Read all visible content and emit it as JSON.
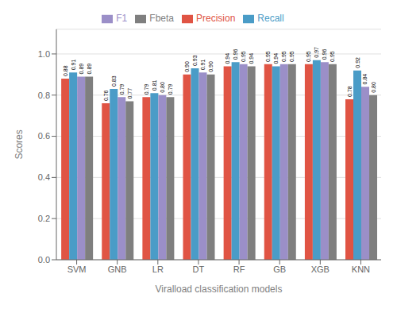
{
  "chart_data": {
    "type": "bar",
    "categories": [
      "SVM",
      "GNB",
      "LR",
      "DT",
      "RF",
      "GB",
      "XGB",
      "KNN"
    ],
    "series": [
      {
        "name": "Precision",
        "color": "#e05444",
        "values": [
          0.88,
          0.76,
          0.79,
          0.9,
          0.94,
          0.95,
          0.95,
          0.78
        ],
        "value_labels": [
          "0.88",
          "0.76",
          "0.79",
          "0.90",
          "0.94",
          "0.95",
          "0.95",
          "0.78"
        ]
      },
      {
        "name": "Recall",
        "color": "#4a9cc7",
        "values": [
          0.91,
          0.83,
          0.81,
          0.93,
          0.96,
          0.94,
          0.97,
          0.92
        ],
        "value_labels": [
          "0.91",
          "0.83",
          "0.81",
          "0.93",
          "0.96",
          "0.94",
          "0.97",
          "0.92"
        ]
      },
      {
        "name": "F1",
        "color": "#9b8fc8",
        "values": [
          0.89,
          0.79,
          0.8,
          0.91,
          0.95,
          0.95,
          0.96,
          0.84
        ],
        "value_labels": [
          "0.89",
          "0.79",
          "0.80",
          "0.91",
          "0.95",
          "0.95",
          "0.96",
          "0.84"
        ]
      },
      {
        "name": "Fbeta",
        "color": "#7f7f7f",
        "values": [
          0.89,
          0.77,
          0.79,
          0.9,
          0.94,
          0.95,
          0.95,
          0.8
        ],
        "value_labels": [
          "0.89",
          "0.77",
          "0.79",
          "0.90",
          "0.94",
          "0.95",
          "0.95",
          "0.80"
        ]
      }
    ],
    "xlabel": "Viralload classification models",
    "ylabel": "Scores",
    "ylim": [
      0.0,
      1.12
    ],
    "yticks": [
      {
        "value": 0.0,
        "label": "0.0"
      },
      0.2,
      0.4,
      0.6,
      0.8,
      {
        "value": 1.0,
        "label": "1.0"
      }
    ],
    "grid": true,
    "legend": "top",
    "data_labels": true
  }
}
